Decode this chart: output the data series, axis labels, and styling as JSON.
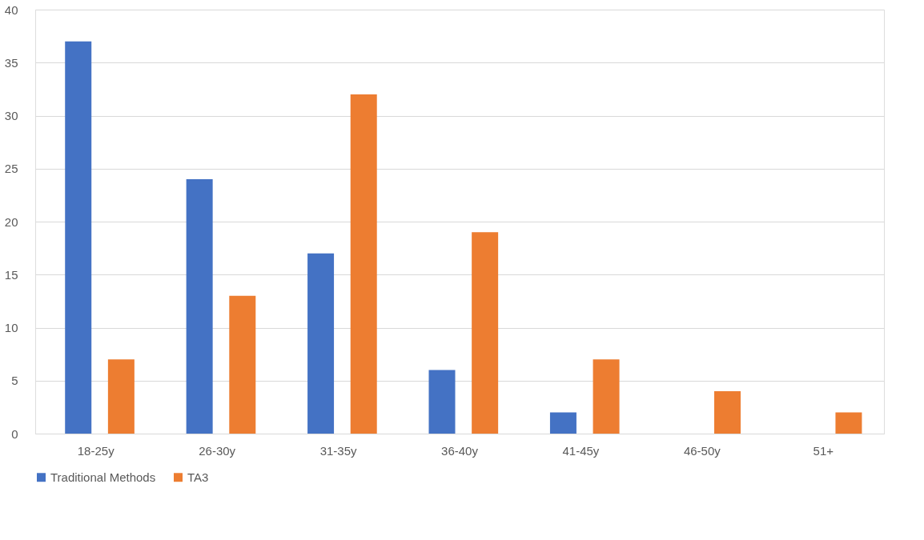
{
  "chart_data": {
    "type": "bar",
    "categories": [
      "18-25y",
      "26-30y",
      "31-35y",
      "36-40y",
      "41-45y",
      "46-50y",
      "51+"
    ],
    "series": [
      {
        "name": "Traditional Methods",
        "color": "#4472c4",
        "values": [
          37,
          24,
          17,
          6,
          2,
          0,
          0
        ]
      },
      {
        "name": "TA3",
        "color": "#ed7d31",
        "values": [
          7,
          13,
          32,
          19,
          7,
          4,
          2
        ]
      }
    ],
    "ylim": [
      0,
      40
    ],
    "yticks": [
      0,
      5,
      10,
      15,
      20,
      25,
      30,
      35,
      40
    ],
    "grid": "y",
    "legend": "bottom"
  }
}
